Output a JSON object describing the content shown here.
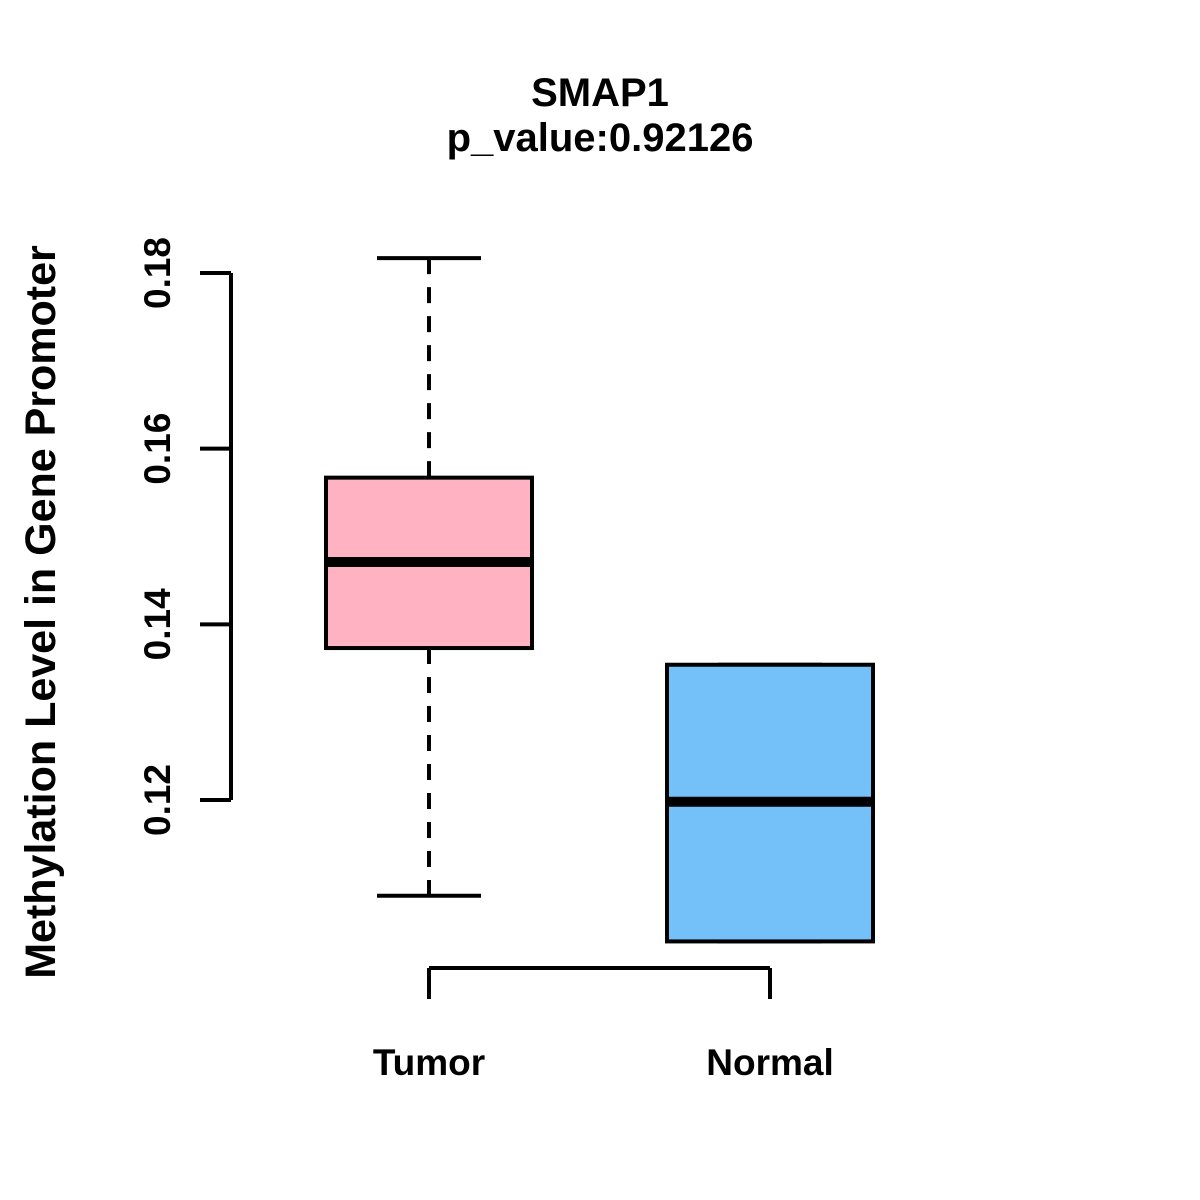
{
  "chart_data": {
    "type": "boxplot",
    "title": "SMAP1",
    "subtitle": "p_value:0.92126",
    "p_value_text": "p_value:0.92126",
    "xlabel": "",
    "ylabel": "Methylation Level in Gene Promoter",
    "categories": [
      "Tumor",
      "Normal"
    ],
    "series": [
      {
        "name": "Tumor",
        "color": "#FFB2C1",
        "whisker_low": 0.1091,
        "q1": 0.1373,
        "median": 0.1471,
        "q3": 0.1567,
        "whisker_high": 0.1817
      },
      {
        "name": "Normal",
        "color": "#74C0F8",
        "whisker_low": 0.1039,
        "q1": 0.1039,
        "median": 0.1198,
        "q3": 0.1354,
        "whisker_high": 0.1354
      }
    ],
    "y_ticks": [
      0.12,
      0.14,
      0.16,
      0.18
    ],
    "y_tick_labels": [
      "0.12",
      "0.14",
      "0.16",
      "0.18"
    ],
    "ylim": [
      0.104,
      0.182
    ],
    "grid": false,
    "legend": "none",
    "axis_color": "#000000",
    "median_color": "#000000",
    "background_color": "#FFFFFF"
  }
}
